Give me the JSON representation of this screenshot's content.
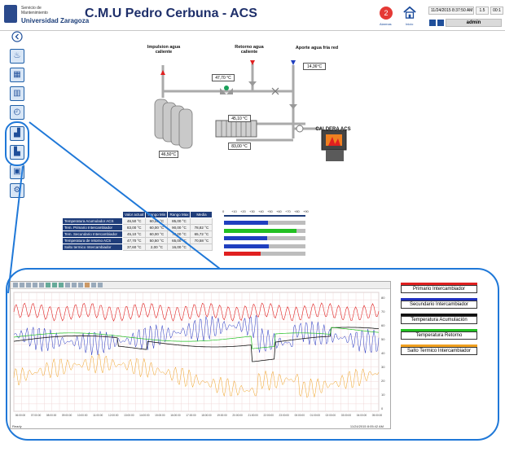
{
  "header": {
    "org_line1": "Servicio de",
    "org_line2": "Mantenimiento",
    "org_univ": "Universidad Zaragoza",
    "title": "C.M.U Pedro Cerbuna - ACS",
    "alarm_count": "2",
    "alarm_label": "Alarmas",
    "home_label": "Inicio",
    "datetime": "11/24/2015 8:37:50 AM",
    "box1": "1.5",
    "box2": "00:1",
    "user": "admin"
  },
  "diagram": {
    "impulsion_label": "Impulsion agua caliente",
    "retorno_label": "Retorno agua caliente",
    "aporte_label": "Aporte agua fria red",
    "aporte_temp": "14,36°C",
    "retorno_temp": "47,70 °C",
    "exch_temp_top": "45,10 °C",
    "exch_temp_bottom": "83,00 °C",
    "tank_temp": "46,50°C",
    "caldera_label": "CALDERA ACS"
  },
  "table": {
    "headers": [
      "Valor actual",
      "Rango Min",
      "Rango Max",
      "Media"
    ],
    "rows": [
      {
        "label": "Temperatura Acumulador ACS",
        "actual": "46,50 °C",
        "min": "60,00 °C",
        "max": "85,00 °C",
        "media": "",
        "pct": 0.54,
        "color": "#1f3fbf"
      },
      {
        "label": "Tem. Primario Intercambiador",
        "actual": "83,00 °C",
        "min": "60,00 °C",
        "max": "90,00 °C",
        "media": "78,82 °C",
        "pct": 0.89,
        "color": "#22c022"
      },
      {
        "label": "Tem. Secundario Intercambiador",
        "actual": "45,10 °C",
        "min": "60,00 °C",
        "max": "78,00 °C",
        "media": "65,72 °C",
        "pct": 0.53,
        "color": "#1f3fbf"
      },
      {
        "label": "Temperatura de retorno ACS",
        "actual": "47,70 °C",
        "min": "50,50 °C",
        "max": "65,00 °C",
        "media": "70,58 °C",
        "pct": 0.55,
        "color": "#1f3fbf"
      },
      {
        "label": "Salto termico Intercambiador",
        "actual": "37,60 °C",
        "min": "2,00 °C",
        "max": "16,00 °C",
        "media": "",
        "pct": 0.45,
        "color": "#e02020"
      }
    ],
    "scale_ticks": [
      "0",
      "+10",
      "+20",
      "+30",
      "+40",
      "+50",
      "+60",
      "+70",
      "+80",
      "+90"
    ]
  },
  "chart": {
    "legend": [
      {
        "name": "Primario Intercambiador",
        "color": "#e02020"
      },
      {
        "name": "Secundario Intercambiador",
        "color": "#1f2fbf"
      },
      {
        "name": "Temperatura Acumulación",
        "color": "#111111"
      },
      {
        "name": "Temperatura Retorno",
        "color": "#22c022"
      },
      {
        "name": "Salto Termico Intercambiador",
        "color": "#f0a020"
      }
    ],
    "y_ticks": [
      "80",
      "70",
      "60",
      "50",
      "40",
      "30",
      "20",
      "10",
      "0"
    ],
    "x_ticks": [
      "06:00:00",
      "07:00:00",
      "08:00:00",
      "09:00:00",
      "10:00:00",
      "11:00:00",
      "12:00:00",
      "13:00:00",
      "14:00:00",
      "15:00:00",
      "16:00:00",
      "17:00:00",
      "18:00:00",
      "19:00:00",
      "20:00:00",
      "21:00:00",
      "22:00:00",
      "23:00:00",
      "00:00:00",
      "01:00:00",
      "02:00:00",
      "03:00:00",
      "04:00:00",
      "05:00:00"
    ],
    "status_left": "Ready",
    "status_right": "11/24/2015   8:05:42 AM"
  },
  "sidebar": [
    "back-icon",
    "flame-icon",
    "network-icon",
    "building-icon",
    "gauge-icon",
    "chart-icon",
    "chart2-icon",
    "boxes-icon",
    "gear-icon"
  ]
}
